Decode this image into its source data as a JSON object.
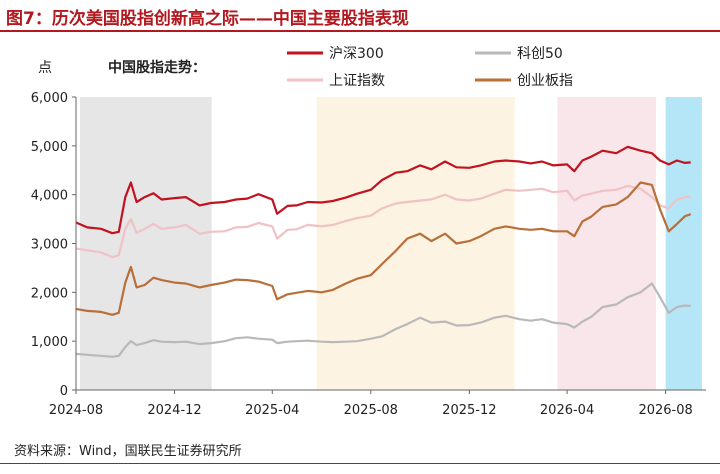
{
  "figure": {
    "title": "图7：历次美国股指创新高之际——中国主要股指表现",
    "source": "资料来源：Wind，国联民生证券研究所"
  },
  "chart_data": {
    "type": "line",
    "title": "中国股指走势：",
    "ylabel": "点",
    "ylim": [
      0,
      6000
    ],
    "yticks": [
      0,
      1000,
      2000,
      3000,
      4000,
      5000,
      6000
    ],
    "ytick_labels": [
      "0",
      "1,000",
      "2,000",
      "3,000",
      "4,000",
      "5,000",
      "6,000"
    ],
    "xlim": [
      "2024-08-01",
      "2026-09-20"
    ],
    "xticks": [
      "2024-08",
      "2024-12",
      "2025-04",
      "2025-08",
      "2025-12",
      "2026-04",
      "2026-08"
    ],
    "grid": false,
    "legend_position": "top",
    "shaded_periods": [
      {
        "start": "2024-08-06",
        "end": "2025-01-16",
        "color": "#e6e6e6"
      },
      {
        "start": "2025-05-26",
        "end": "2026-01-26",
        "color": "#fdf3e2"
      },
      {
        "start": "2026-03-20",
        "end": "2026-07-20",
        "color": "#f8e6ea"
      },
      {
        "start": "2026-08-01",
        "end": "2026-09-15",
        "color": "#b5e6f7"
      }
    ],
    "series": [
      {
        "name": "沪深300",
        "color": "#c1121f",
        "points": [
          [
            "2024-08-01",
            3430
          ],
          [
            "2024-08-15",
            3330
          ],
          [
            "2024-09-01",
            3300
          ],
          [
            "2024-09-15",
            3210
          ],
          [
            "2024-09-23",
            3240
          ],
          [
            "2024-10-01",
            3950
          ],
          [
            "2024-10-08",
            4250
          ],
          [
            "2024-10-15",
            3850
          ],
          [
            "2024-10-25",
            3950
          ],
          [
            "2024-11-05",
            4030
          ],
          [
            "2024-11-15",
            3900
          ],
          [
            "2024-12-01",
            3930
          ],
          [
            "2024-12-15",
            3950
          ],
          [
            "2025-01-01",
            3780
          ],
          [
            "2025-01-15",
            3830
          ],
          [
            "2025-02-01",
            3850
          ],
          [
            "2025-02-15",
            3900
          ],
          [
            "2025-03-01",
            3920
          ],
          [
            "2025-03-15",
            4010
          ],
          [
            "2025-04-01",
            3900
          ],
          [
            "2025-04-07",
            3610
          ],
          [
            "2025-04-20",
            3770
          ],
          [
            "2025-05-01",
            3780
          ],
          [
            "2025-05-15",
            3850
          ],
          [
            "2025-06-01",
            3840
          ],
          [
            "2025-06-15",
            3870
          ],
          [
            "2025-07-01",
            3940
          ],
          [
            "2025-07-15",
            4020
          ],
          [
            "2025-08-01",
            4100
          ],
          [
            "2025-08-15",
            4300
          ],
          [
            "2025-09-01",
            4450
          ],
          [
            "2025-09-15",
            4480
          ],
          [
            "2025-10-01",
            4600
          ],
          [
            "2025-10-15",
            4520
          ],
          [
            "2025-11-01",
            4680
          ],
          [
            "2025-11-15",
            4560
          ],
          [
            "2025-12-01",
            4550
          ],
          [
            "2025-12-15",
            4600
          ],
          [
            "2026-01-01",
            4680
          ],
          [
            "2026-01-15",
            4700
          ],
          [
            "2026-02-01",
            4680
          ],
          [
            "2026-02-15",
            4640
          ],
          [
            "2026-03-01",
            4680
          ],
          [
            "2026-03-15",
            4600
          ],
          [
            "2026-04-01",
            4620
          ],
          [
            "2026-04-10",
            4480
          ],
          [
            "2026-04-20",
            4700
          ],
          [
            "2026-05-01",
            4780
          ],
          [
            "2026-05-15",
            4900
          ],
          [
            "2026-06-01",
            4850
          ],
          [
            "2026-06-15",
            4980
          ],
          [
            "2026-07-01",
            4900
          ],
          [
            "2026-07-15",
            4850
          ],
          [
            "2026-07-25",
            4700
          ],
          [
            "2026-08-05",
            4620
          ],
          [
            "2026-08-15",
            4700
          ],
          [
            "2026-08-25",
            4650
          ],
          [
            "2026-09-01",
            4660
          ]
        ]
      },
      {
        "name": "上证指数",
        "color": "#f0c2c6",
        "points": [
          [
            "2024-08-01",
            2900
          ],
          [
            "2024-08-15",
            2860
          ],
          [
            "2024-09-01",
            2820
          ],
          [
            "2024-09-15",
            2720
          ],
          [
            "2024-09-23",
            2760
          ],
          [
            "2024-10-01",
            3300
          ],
          [
            "2024-10-08",
            3500
          ],
          [
            "2024-10-15",
            3220
          ],
          [
            "2024-10-25",
            3300
          ],
          [
            "2024-11-05",
            3400
          ],
          [
            "2024-11-15",
            3300
          ],
          [
            "2024-12-01",
            3330
          ],
          [
            "2024-12-15",
            3380
          ],
          [
            "2025-01-01",
            3200
          ],
          [
            "2025-01-15",
            3240
          ],
          [
            "2025-02-01",
            3250
          ],
          [
            "2025-02-15",
            3330
          ],
          [
            "2025-03-01",
            3340
          ],
          [
            "2025-03-15",
            3420
          ],
          [
            "2025-04-01",
            3350
          ],
          [
            "2025-04-07",
            3100
          ],
          [
            "2025-04-20",
            3280
          ],
          [
            "2025-05-01",
            3290
          ],
          [
            "2025-05-15",
            3380
          ],
          [
            "2025-06-01",
            3350
          ],
          [
            "2025-06-15",
            3380
          ],
          [
            "2025-07-01",
            3460
          ],
          [
            "2025-07-15",
            3520
          ],
          [
            "2025-08-01",
            3570
          ],
          [
            "2025-08-15",
            3720
          ],
          [
            "2025-09-01",
            3820
          ],
          [
            "2025-09-15",
            3850
          ],
          [
            "2025-10-01",
            3880
          ],
          [
            "2025-10-15",
            3900
          ],
          [
            "2025-11-01",
            4000
          ],
          [
            "2025-11-15",
            3900
          ],
          [
            "2025-12-01",
            3880
          ],
          [
            "2025-12-15",
            3920
          ],
          [
            "2026-01-01",
            4020
          ],
          [
            "2026-01-15",
            4100
          ],
          [
            "2026-02-01",
            4080
          ],
          [
            "2026-02-15",
            4100
          ],
          [
            "2026-03-01",
            4120
          ],
          [
            "2026-03-15",
            4050
          ],
          [
            "2026-04-01",
            4080
          ],
          [
            "2026-04-10",
            3880
          ],
          [
            "2026-04-20",
            3980
          ],
          [
            "2026-05-01",
            4020
          ],
          [
            "2026-05-15",
            4080
          ],
          [
            "2026-06-01",
            4100
          ],
          [
            "2026-06-15",
            4180
          ],
          [
            "2026-07-01",
            4120
          ],
          [
            "2026-07-15",
            3950
          ],
          [
            "2026-07-25",
            3780
          ],
          [
            "2026-08-05",
            3720
          ],
          [
            "2026-08-15",
            3900
          ],
          [
            "2026-08-25",
            3950
          ],
          [
            "2026-09-01",
            3960
          ]
        ]
      },
      {
        "name": "创业板指",
        "color": "#b86f3a",
        "points": [
          [
            "2024-08-01",
            1660
          ],
          [
            "2024-08-15",
            1620
          ],
          [
            "2024-09-01",
            1600
          ],
          [
            "2024-09-15",
            1540
          ],
          [
            "2024-09-23",
            1580
          ],
          [
            "2024-10-01",
            2200
          ],
          [
            "2024-10-08",
            2520
          ],
          [
            "2024-10-15",
            2100
          ],
          [
            "2024-10-25",
            2150
          ],
          [
            "2024-11-05",
            2300
          ],
          [
            "2024-11-15",
            2250
          ],
          [
            "2024-12-01",
            2200
          ],
          [
            "2024-12-15",
            2180
          ],
          [
            "2025-01-01",
            2100
          ],
          [
            "2025-01-15",
            2150
          ],
          [
            "2025-02-01",
            2200
          ],
          [
            "2025-02-15",
            2260
          ],
          [
            "2025-03-01",
            2250
          ],
          [
            "2025-03-15",
            2220
          ],
          [
            "2025-04-01",
            2130
          ],
          [
            "2025-04-07",
            1860
          ],
          [
            "2025-04-20",
            1960
          ],
          [
            "2025-05-01",
            1990
          ],
          [
            "2025-05-15",
            2030
          ],
          [
            "2025-06-01",
            2000
          ],
          [
            "2025-06-15",
            2050
          ],
          [
            "2025-07-01",
            2180
          ],
          [
            "2025-07-15",
            2280
          ],
          [
            "2025-08-01",
            2350
          ],
          [
            "2025-08-15",
            2580
          ],
          [
            "2025-09-01",
            2850
          ],
          [
            "2025-09-15",
            3100
          ],
          [
            "2025-10-01",
            3200
          ],
          [
            "2025-10-15",
            3050
          ],
          [
            "2025-11-01",
            3200
          ],
          [
            "2025-11-15",
            3000
          ],
          [
            "2025-12-01",
            3050
          ],
          [
            "2025-12-15",
            3150
          ],
          [
            "2026-01-01",
            3300
          ],
          [
            "2026-01-15",
            3350
          ],
          [
            "2026-02-01",
            3300
          ],
          [
            "2026-02-15",
            3280
          ],
          [
            "2026-03-01",
            3300
          ],
          [
            "2026-03-15",
            3250
          ],
          [
            "2026-04-01",
            3250
          ],
          [
            "2026-04-10",
            3150
          ],
          [
            "2026-04-20",
            3450
          ],
          [
            "2026-05-01",
            3550
          ],
          [
            "2026-05-15",
            3750
          ],
          [
            "2026-06-01",
            3800
          ],
          [
            "2026-06-15",
            3950
          ],
          [
            "2026-07-01",
            4250
          ],
          [
            "2026-07-15",
            4200
          ],
          [
            "2026-07-25",
            3700
          ],
          [
            "2026-08-05",
            3250
          ],
          [
            "2026-08-15",
            3400
          ],
          [
            "2026-08-25",
            3560
          ],
          [
            "2026-09-01",
            3600
          ]
        ]
      },
      {
        "name": "科创50",
        "color": "#b9b9b9",
        "points": [
          [
            "2024-08-01",
            740
          ],
          [
            "2024-08-15",
            720
          ],
          [
            "2024-09-01",
            700
          ],
          [
            "2024-09-15",
            680
          ],
          [
            "2024-09-23",
            700
          ],
          [
            "2024-10-01",
            880
          ],
          [
            "2024-10-08",
            1000
          ],
          [
            "2024-10-15",
            920
          ],
          [
            "2024-10-25",
            960
          ],
          [
            "2024-11-05",
            1020
          ],
          [
            "2024-11-15",
            990
          ],
          [
            "2024-12-01",
            980
          ],
          [
            "2024-12-15",
            990
          ],
          [
            "2025-01-01",
            940
          ],
          [
            "2025-01-15",
            960
          ],
          [
            "2025-02-01",
            1000
          ],
          [
            "2025-02-15",
            1060
          ],
          [
            "2025-03-01",
            1080
          ],
          [
            "2025-03-15",
            1050
          ],
          [
            "2025-04-01",
            1030
          ],
          [
            "2025-04-07",
            960
          ],
          [
            "2025-04-20",
            990
          ],
          [
            "2025-05-01",
            1000
          ],
          [
            "2025-05-15",
            1010
          ],
          [
            "2025-06-01",
            990
          ],
          [
            "2025-06-15",
            980
          ],
          [
            "2025-07-01",
            990
          ],
          [
            "2025-07-15",
            1000
          ],
          [
            "2025-08-01",
            1050
          ],
          [
            "2025-08-15",
            1100
          ],
          [
            "2025-09-01",
            1250
          ],
          [
            "2025-09-15",
            1350
          ],
          [
            "2025-10-01",
            1480
          ],
          [
            "2025-10-15",
            1380
          ],
          [
            "2025-11-01",
            1400
          ],
          [
            "2025-11-15",
            1320
          ],
          [
            "2025-12-01",
            1330
          ],
          [
            "2025-12-15",
            1380
          ],
          [
            "2026-01-01",
            1480
          ],
          [
            "2026-01-15",
            1520
          ],
          [
            "2026-02-01",
            1450
          ],
          [
            "2026-02-15",
            1420
          ],
          [
            "2026-03-01",
            1450
          ],
          [
            "2026-03-15",
            1380
          ],
          [
            "2026-04-01",
            1350
          ],
          [
            "2026-04-10",
            1280
          ],
          [
            "2026-04-20",
            1400
          ],
          [
            "2026-05-01",
            1500
          ],
          [
            "2026-05-15",
            1700
          ],
          [
            "2026-06-01",
            1750
          ],
          [
            "2026-06-15",
            1900
          ],
          [
            "2026-07-01",
            2000
          ],
          [
            "2026-07-15",
            2180
          ],
          [
            "2026-07-25",
            1900
          ],
          [
            "2026-08-05",
            1580
          ],
          [
            "2026-08-15",
            1700
          ],
          [
            "2026-08-25",
            1730
          ],
          [
            "2026-09-01",
            1720
          ]
        ]
      }
    ]
  }
}
